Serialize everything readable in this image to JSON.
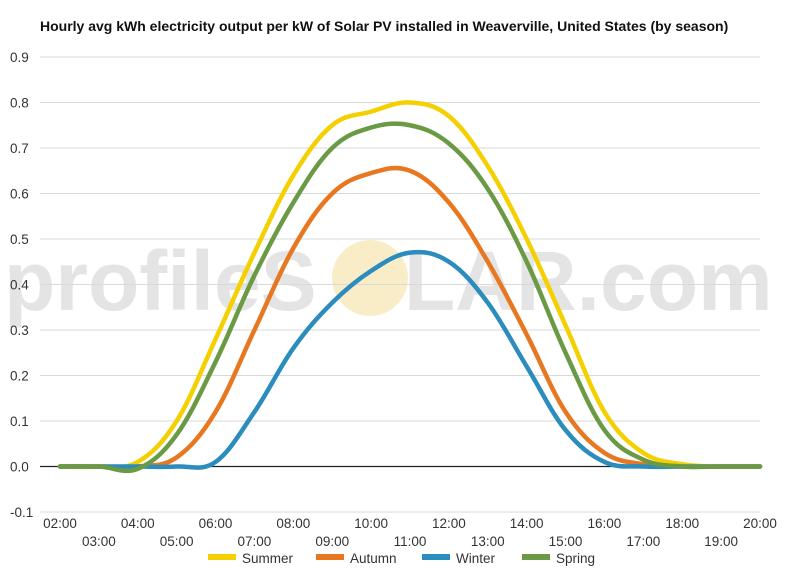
{
  "watermark": {
    "left": "profileS",
    "right": "LAR.com"
  },
  "chart_data": {
    "type": "line",
    "title": "Hourly avg kWh electricity output per kW of Solar PV installed in Weaverville, United States (by season)",
    "xlabel": "",
    "ylabel": "",
    "ylim": [
      -0.1,
      0.9
    ],
    "yticks": [
      "0.9",
      "0.8",
      "0.7",
      "0.6",
      "0.5",
      "0.4",
      "0.3",
      "0.2",
      "0.1",
      "0.0",
      "-0.1"
    ],
    "grid": true,
    "legend_position": "bottom",
    "x": [
      "02:00",
      "03:00",
      "04:00",
      "05:00",
      "06:00",
      "07:00",
      "08:00",
      "09:00",
      "10:00",
      "11:00",
      "12:00",
      "13:00",
      "14:00",
      "15:00",
      "16:00",
      "17:00",
      "18:00",
      "19:00",
      "20:00"
    ],
    "series": [
      {
        "name": "Summer",
        "color": "#f5d000",
        "values": [
          0,
          0,
          0.01,
          0.1,
          0.28,
          0.47,
          0.64,
          0.75,
          0.78,
          0.8,
          0.77,
          0.66,
          0.5,
          0.31,
          0.12,
          0.03,
          0.005,
          0,
          0
        ]
      },
      {
        "name": "Autumn",
        "color": "#e87722",
        "values": [
          0,
          0,
          0,
          0.02,
          0.12,
          0.3,
          0.48,
          0.6,
          0.645,
          0.65,
          0.58,
          0.45,
          0.29,
          0.12,
          0.03,
          0.005,
          0,
          0,
          0
        ]
      },
      {
        "name": "Winter",
        "color": "#2b8cbe",
        "values": [
          0,
          0,
          0,
          0,
          0.01,
          0.12,
          0.26,
          0.36,
          0.43,
          0.47,
          0.45,
          0.36,
          0.22,
          0.08,
          0.01,
          0,
          0,
          0,
          0
        ]
      },
      {
        "name": "Spring",
        "color": "#6b9a45",
        "values": [
          0,
          0,
          -0.005,
          0.07,
          0.23,
          0.42,
          0.58,
          0.7,
          0.745,
          0.75,
          0.71,
          0.61,
          0.45,
          0.25,
          0.08,
          0.015,
          0,
          0,
          0
        ]
      }
    ]
  }
}
